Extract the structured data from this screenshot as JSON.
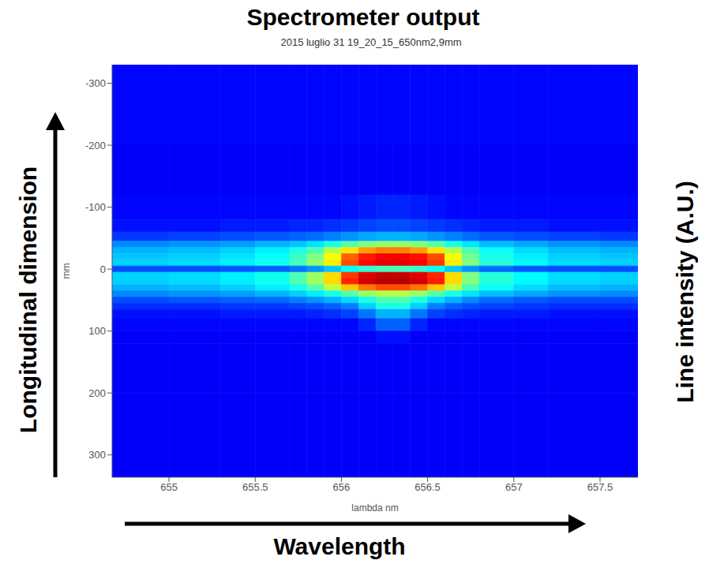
{
  "chart_data": {
    "type": "heatmap",
    "title": "Spectrometer output",
    "subtitle": "2015 luglio 31 19_20_15_650nm2,9mm",
    "x_label": "lambda nm",
    "y_label": "mm",
    "annotations": [
      "Longitudinal dimension",
      "Line intensity (A.U.)",
      "Wavelength"
    ],
    "xlim": [
      654.67,
      657.72
    ],
    "xticks": [
      655,
      655.5,
      656,
      656.5,
      657,
      657.5
    ],
    "ylim": [
      -330,
      336
    ],
    "yticks": [
      -300,
      -200,
      -100,
      0,
      100,
      200,
      300
    ],
    "x_edges": [
      654.67,
      655.0,
      655.3,
      655.5,
      655.7,
      655.8,
      655.9,
      656.0,
      656.1,
      656.2,
      656.3,
      656.4,
      656.5,
      656.6,
      656.7,
      656.8,
      657.0,
      657.2,
      657.5,
      657.72
    ],
    "y_edges": [
      -330,
      -200,
      -120,
      -80,
      -60,
      -45,
      -35,
      -25,
      -15,
      -5,
      5,
      15,
      25,
      35,
      45,
      55,
      65,
      80,
      100,
      120,
      200,
      336
    ],
    "cells": [
      [
        0.13,
        0.13,
        0.13,
        0.13,
        0.13,
        0.13,
        0.13,
        0.13,
        0.13,
        0.13,
        0.13,
        0.13,
        0.13,
        0.13,
        0.13,
        0.13,
        0.13,
        0.13,
        0.13
      ],
      [
        0.12,
        0.12,
        0.12,
        0.12,
        0.12,
        0.12,
        0.12,
        0.12,
        0.12,
        0.12,
        0.12,
        0.12,
        0.12,
        0.12,
        0.12,
        0.12,
        0.12,
        0.12,
        0.12
      ],
      [
        0.13,
        0.13,
        0.13,
        0.13,
        0.13,
        0.13,
        0.13,
        0.14,
        0.15,
        0.16,
        0.16,
        0.15,
        0.14,
        0.13,
        0.13,
        0.13,
        0.13,
        0.13,
        0.13
      ],
      [
        0.14,
        0.14,
        0.15,
        0.15,
        0.16,
        0.16,
        0.17,
        0.18,
        0.19,
        0.2,
        0.2,
        0.19,
        0.18,
        0.17,
        0.16,
        0.15,
        0.15,
        0.14,
        0.14
      ],
      [
        0.18,
        0.19,
        0.2,
        0.21,
        0.22,
        0.23,
        0.25,
        0.27,
        0.29,
        0.3,
        0.3,
        0.29,
        0.27,
        0.25,
        0.23,
        0.21,
        0.2,
        0.19,
        0.18
      ],
      [
        0.26,
        0.27,
        0.28,
        0.3,
        0.32,
        0.35,
        0.4,
        0.46,
        0.5,
        0.52,
        0.52,
        0.5,
        0.46,
        0.4,
        0.35,
        0.31,
        0.29,
        0.27,
        0.26
      ],
      [
        0.3,
        0.31,
        0.33,
        0.36,
        0.4,
        0.45,
        0.55,
        0.65,
        0.72,
        0.75,
        0.75,
        0.72,
        0.65,
        0.55,
        0.45,
        0.38,
        0.34,
        0.31,
        0.3
      ],
      [
        0.32,
        0.33,
        0.35,
        0.38,
        0.43,
        0.5,
        0.62,
        0.78,
        0.85,
        0.88,
        0.88,
        0.86,
        0.8,
        0.62,
        0.48,
        0.4,
        0.36,
        0.33,
        0.32
      ],
      [
        0.33,
        0.34,
        0.36,
        0.39,
        0.44,
        0.52,
        0.64,
        0.8,
        0.87,
        0.9,
        0.9,
        0.88,
        0.82,
        0.64,
        0.5,
        0.41,
        0.37,
        0.34,
        0.33
      ],
      [
        0.2,
        0.2,
        0.21,
        0.22,
        0.24,
        0.27,
        0.32,
        0.38,
        0.42,
        0.44,
        0.44,
        0.42,
        0.38,
        0.32,
        0.27,
        0.23,
        0.21,
        0.2,
        0.2
      ],
      [
        0.33,
        0.34,
        0.36,
        0.39,
        0.45,
        0.53,
        0.66,
        0.82,
        0.9,
        0.93,
        0.93,
        0.9,
        0.84,
        0.66,
        0.5,
        0.41,
        0.37,
        0.34,
        0.33
      ],
      [
        0.33,
        0.34,
        0.36,
        0.39,
        0.45,
        0.53,
        0.66,
        0.84,
        0.92,
        0.95,
        0.95,
        0.92,
        0.85,
        0.66,
        0.5,
        0.41,
        0.37,
        0.34,
        0.33
      ],
      [
        0.3,
        0.31,
        0.33,
        0.36,
        0.4,
        0.46,
        0.56,
        0.68,
        0.76,
        0.8,
        0.8,
        0.76,
        0.68,
        0.56,
        0.45,
        0.38,
        0.34,
        0.31,
        0.3
      ],
      [
        0.26,
        0.27,
        0.28,
        0.3,
        0.33,
        0.36,
        0.4,
        0.46,
        0.52,
        0.55,
        0.55,
        0.52,
        0.46,
        0.4,
        0.35,
        0.31,
        0.29,
        0.27,
        0.26
      ],
      [
        0.2,
        0.21,
        0.22,
        0.23,
        0.25,
        0.27,
        0.3,
        0.34,
        0.4,
        0.45,
        0.45,
        0.4,
        0.34,
        0.3,
        0.26,
        0.23,
        0.21,
        0.2,
        0.2
      ],
      [
        0.17,
        0.17,
        0.18,
        0.18,
        0.19,
        0.2,
        0.22,
        0.25,
        0.33,
        0.4,
        0.4,
        0.33,
        0.25,
        0.22,
        0.2,
        0.19,
        0.18,
        0.17,
        0.17
      ],
      [
        0.14,
        0.14,
        0.15,
        0.15,
        0.15,
        0.16,
        0.17,
        0.19,
        0.24,
        0.3,
        0.3,
        0.24,
        0.19,
        0.17,
        0.16,
        0.15,
        0.15,
        0.14,
        0.14
      ],
      [
        0.13,
        0.13,
        0.13,
        0.13,
        0.13,
        0.13,
        0.13,
        0.13,
        0.16,
        0.22,
        0.22,
        0.16,
        0.13,
        0.13,
        0.13,
        0.13,
        0.13,
        0.13,
        0.13
      ],
      [
        0.12,
        0.12,
        0.12,
        0.12,
        0.12,
        0.12,
        0.12,
        0.12,
        0.12,
        0.14,
        0.14,
        0.12,
        0.12,
        0.12,
        0.12,
        0.12,
        0.12,
        0.12,
        0.12
      ],
      [
        0.12,
        0.12,
        0.12,
        0.12,
        0.12,
        0.12,
        0.12,
        0.12,
        0.12,
        0.12,
        0.12,
        0.12,
        0.12,
        0.12,
        0.12,
        0.12,
        0.12,
        0.12,
        0.12
      ],
      [
        0.12,
        0.12,
        0.12,
        0.12,
        0.12,
        0.12,
        0.12,
        0.12,
        0.12,
        0.12,
        0.12,
        0.12,
        0.12,
        0.12,
        0.12,
        0.12,
        0.12,
        0.12,
        0.12
      ]
    ]
  }
}
